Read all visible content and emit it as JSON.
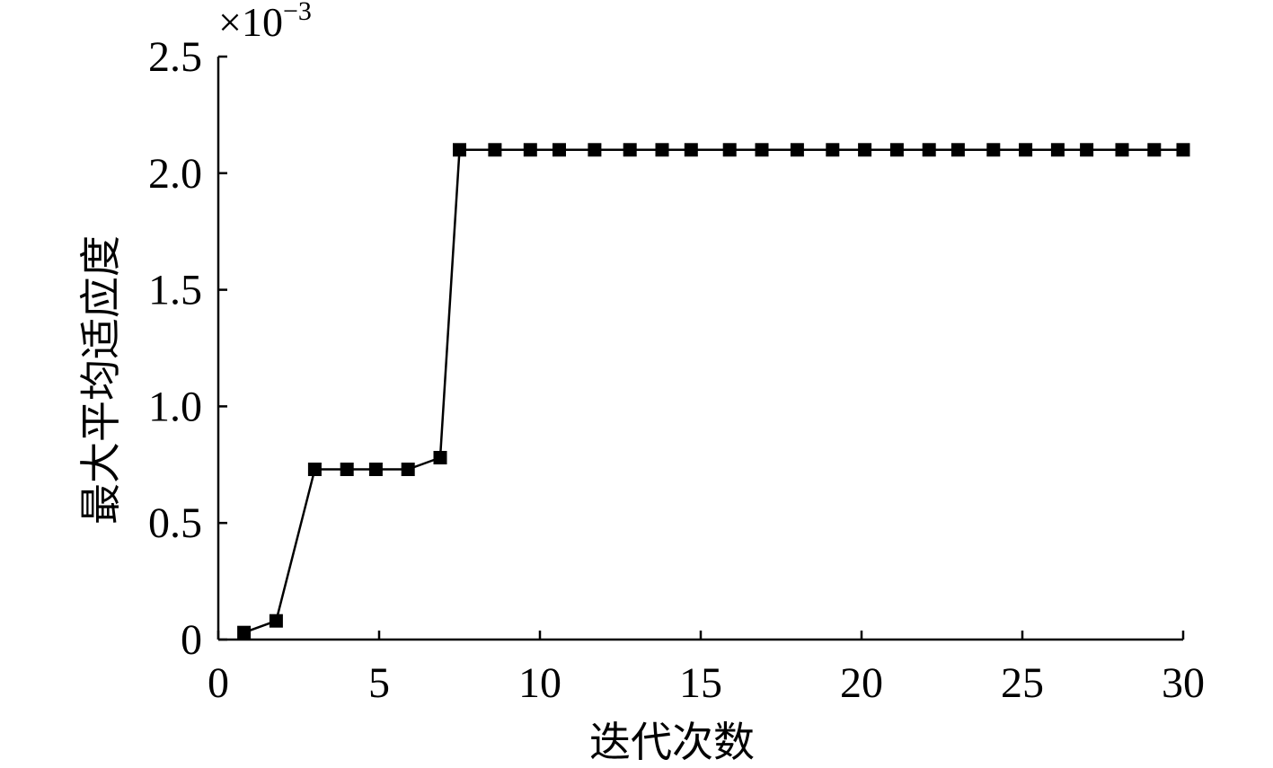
{
  "chart_data": {
    "type": "line",
    "title": "",
    "xlabel": "迭代次数",
    "ylabel": "最大平均适应度",
    "y_multiplier": {
      "base": "×10",
      "exponent": "−3"
    },
    "xlim": [
      0,
      30
    ],
    "ylim": [
      0,
      2.5
    ],
    "x_ticks": [
      0,
      5,
      10,
      15,
      20,
      25,
      30
    ],
    "x_tick_labels": [
      "0",
      "5",
      "10",
      "15",
      "20",
      "25",
      "30"
    ],
    "y_ticks": [
      0,
      0.5,
      1.0,
      1.5,
      2.0,
      2.5
    ],
    "y_tick_labels": [
      "0",
      "0.5",
      "1.0",
      "1.5",
      "2.0",
      "2.5"
    ],
    "grid": false,
    "marker": "square",
    "line_color": "#000000",
    "marker_color": "#000000",
    "series": [
      {
        "x": [
          0.8,
          1.8,
          3.0,
          4.0,
          4.9,
          5.9,
          6.9,
          7.5,
          8.6,
          9.7,
          10.6,
          11.7,
          12.8,
          13.8,
          14.7,
          15.9,
          16.9,
          18.0,
          19.1,
          20.1,
          21.1,
          22.1,
          23.0,
          24.1,
          25.1,
          26.1,
          27.0,
          28.1,
          29.1,
          30.0
        ],
        "y": [
          0.03,
          0.08,
          0.73,
          0.73,
          0.73,
          0.73,
          0.78,
          2.1,
          2.1,
          2.1,
          2.1,
          2.1,
          2.1,
          2.1,
          2.1,
          2.1,
          2.1,
          2.1,
          2.1,
          2.1,
          2.1,
          2.1,
          2.1,
          2.1,
          2.1,
          2.1,
          2.1,
          2.1,
          2.1,
          2.1
        ]
      }
    ]
  }
}
